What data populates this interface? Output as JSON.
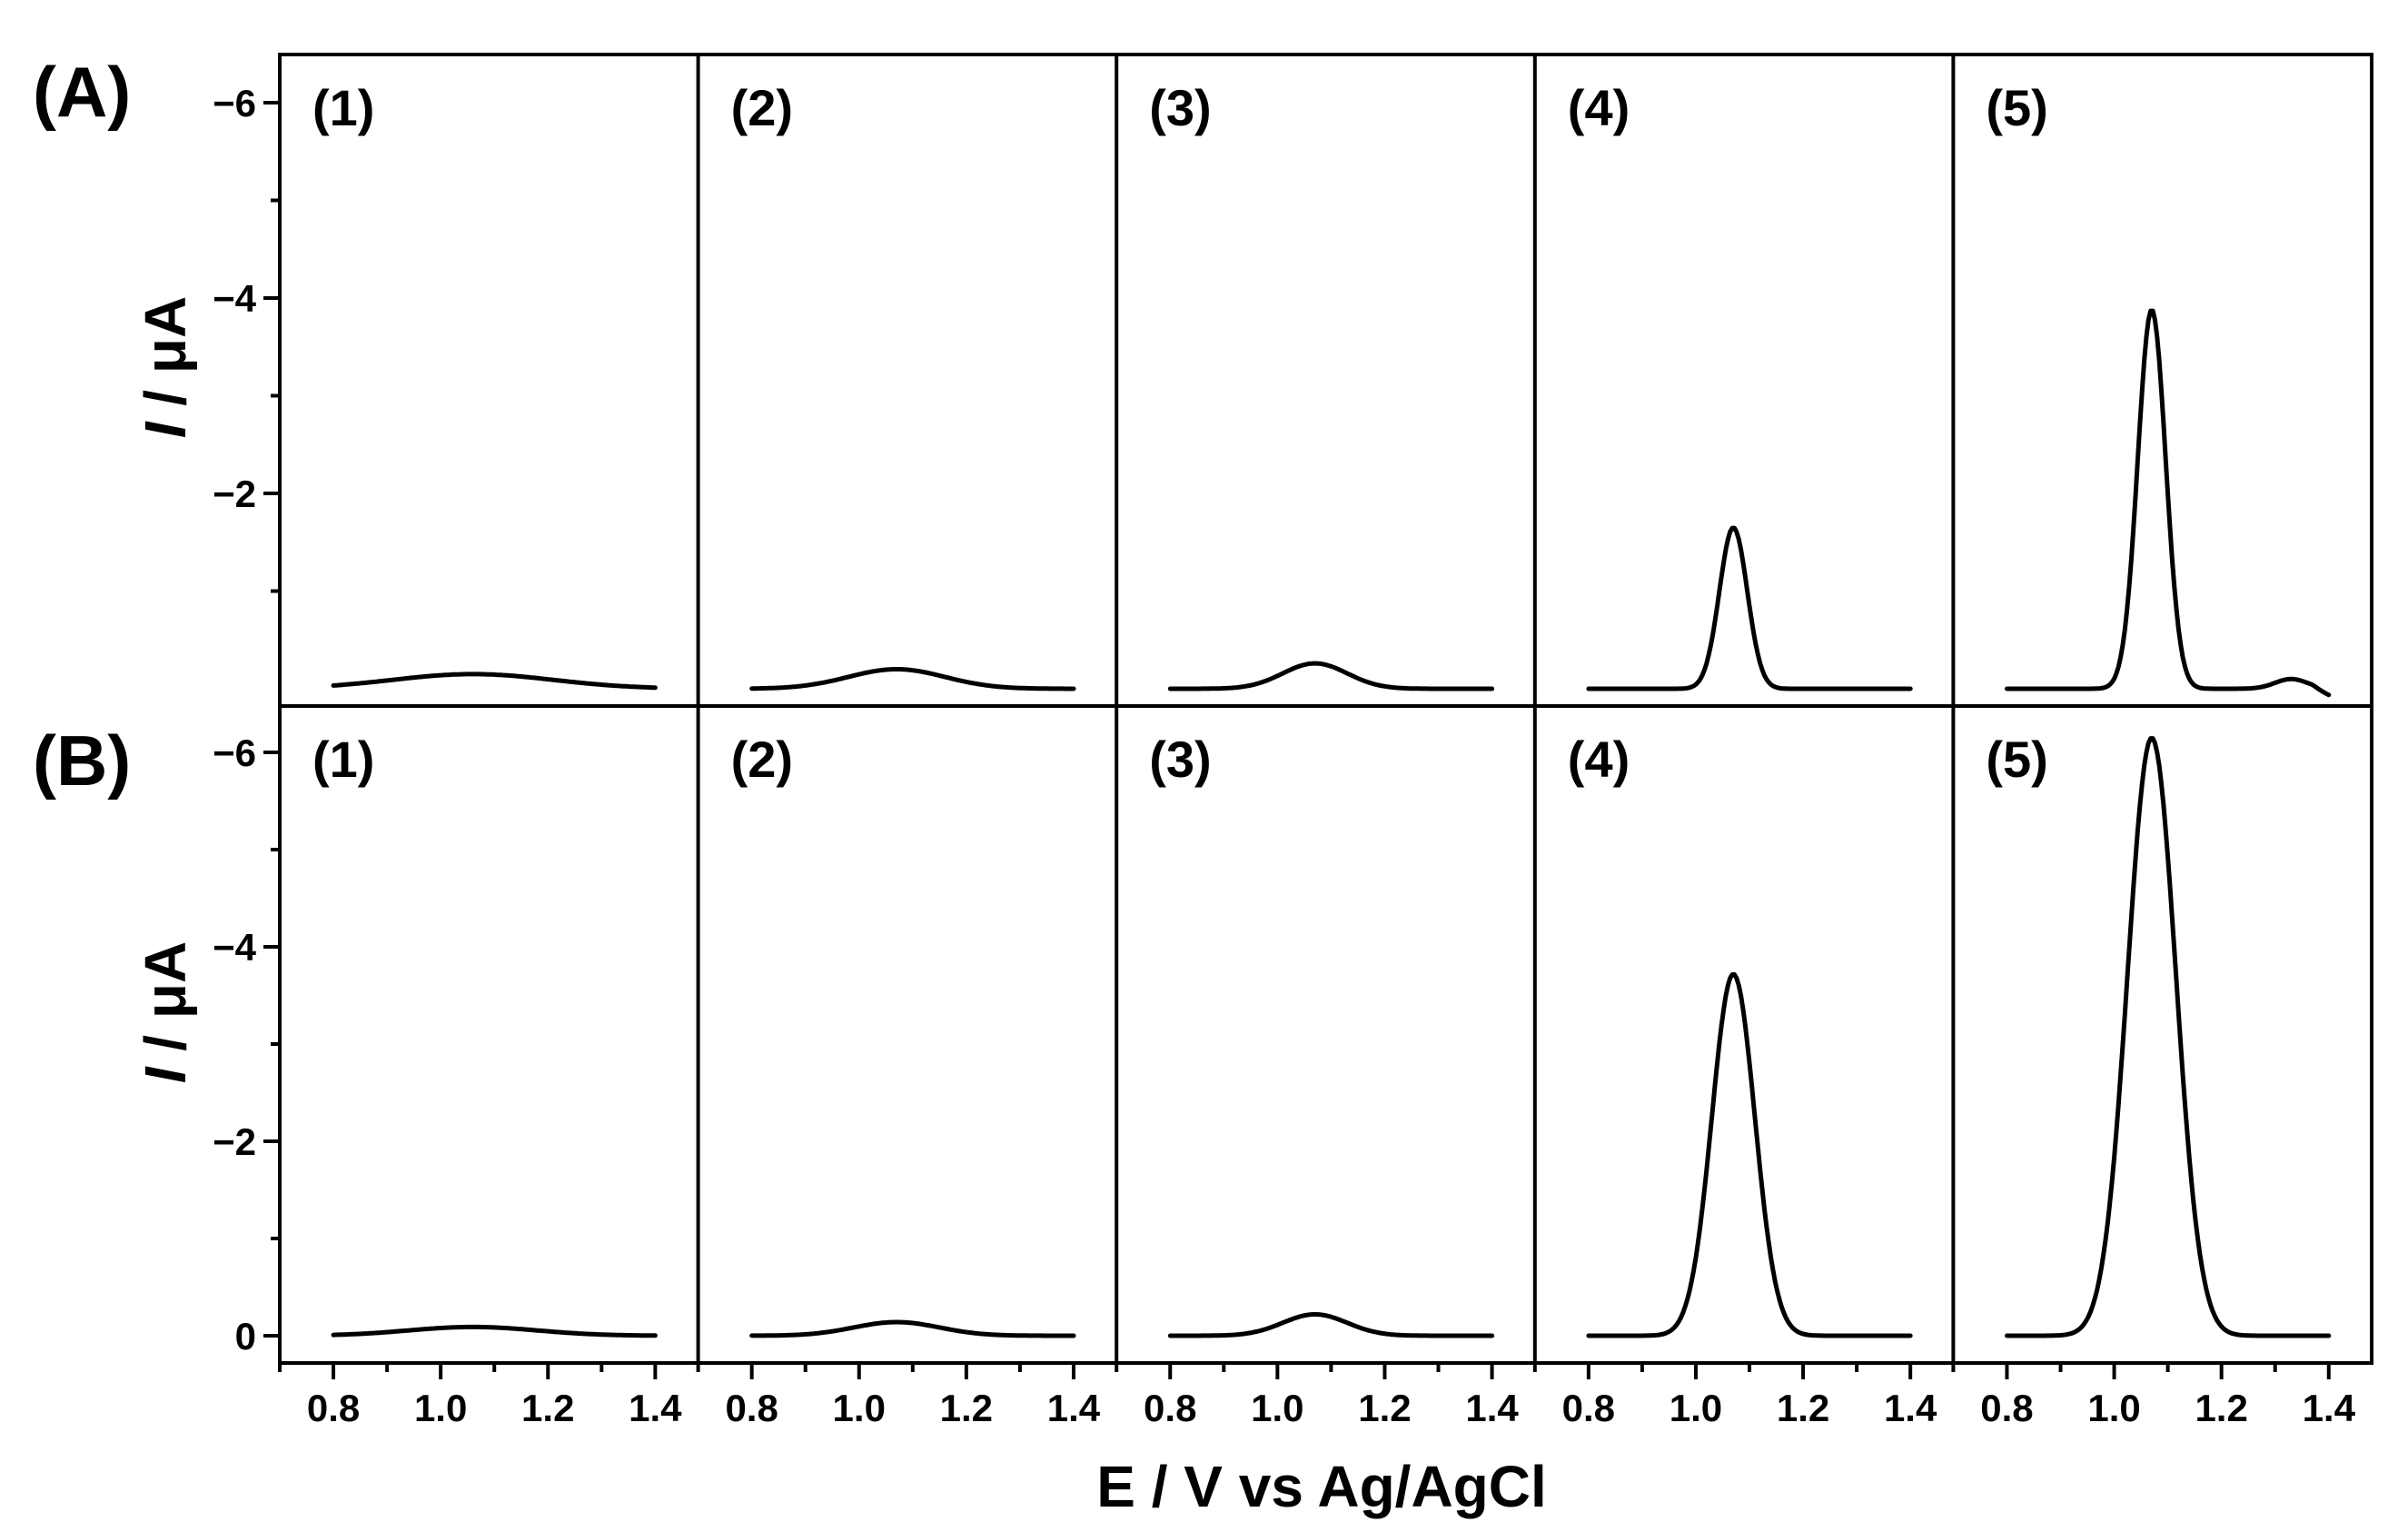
{
  "chart_data": {
    "type": "line",
    "xlabel": "E / V vs Ag/AgCl",
    "ylabel_italic": "I",
    "ylabel_rest": " / μA",
    "xlim": [
      0.7,
      1.48
    ],
    "ylim": [
      0.4,
      -6.6
    ],
    "y_inverted": true,
    "x_ticks": [
      "0.8",
      "1.0",
      "1.2",
      "1.4"
    ],
    "x_tick_values": [
      0.8,
      1.0,
      1.2,
      1.4
    ],
    "y_ticks_A": [
      "−6",
      "−4",
      "−2"
    ],
    "y_tick_values_A": [
      -6,
      -4,
      -2
    ],
    "y_ticks_B": [
      "−6",
      "−4",
      "−2",
      "0"
    ],
    "y_tick_values_B": [
      -6,
      -4,
      -2,
      0
    ],
    "rows": [
      {
        "label": "(A)",
        "panels": [
          {
            "label": "(1)",
            "baseline": 0.0,
            "peak_x": 1.06,
            "peak_height": 0.15,
            "width": 0.15
          },
          {
            "label": "(2)",
            "baseline": 0.0,
            "peak_x": 1.07,
            "peak_height": 0.2,
            "width": 0.09
          },
          {
            "label": "(3)",
            "baseline": 0.0,
            "peak_x": 1.07,
            "peak_height": 0.26,
            "width": 0.06
          },
          {
            "label": "(4)",
            "baseline": 0.0,
            "peak_x": 1.07,
            "peak_height": 1.65,
            "width": 0.026
          },
          {
            "label": "(5)",
            "baseline": 0.0,
            "peak_x": 1.07,
            "peak_height": 3.88,
            "width": 0.026,
            "shoulder_x": 1.33,
            "shoulder_height": 0.1,
            "tail": -0.07
          }
        ]
      },
      {
        "label": "(B)",
        "panels": [
          {
            "label": "(1)",
            "baseline": 0.0,
            "peak_x": 1.06,
            "peak_height": 0.09,
            "width": 0.12
          },
          {
            "label": "(2)",
            "baseline": 0.0,
            "peak_x": 1.07,
            "peak_height": 0.14,
            "width": 0.08
          },
          {
            "label": "(3)",
            "baseline": 0.0,
            "peak_x": 1.07,
            "peak_height": 0.22,
            "width": 0.06
          },
          {
            "label": "(4)",
            "baseline": 0.0,
            "peak_x": 1.07,
            "peak_height": 3.72,
            "width": 0.04
          },
          {
            "label": "(5)",
            "baseline": 0.0,
            "peak_x": 1.07,
            "peak_height": 6.15,
            "width": 0.045
          }
        ]
      }
    ],
    "grid": false,
    "legend": "none"
  }
}
